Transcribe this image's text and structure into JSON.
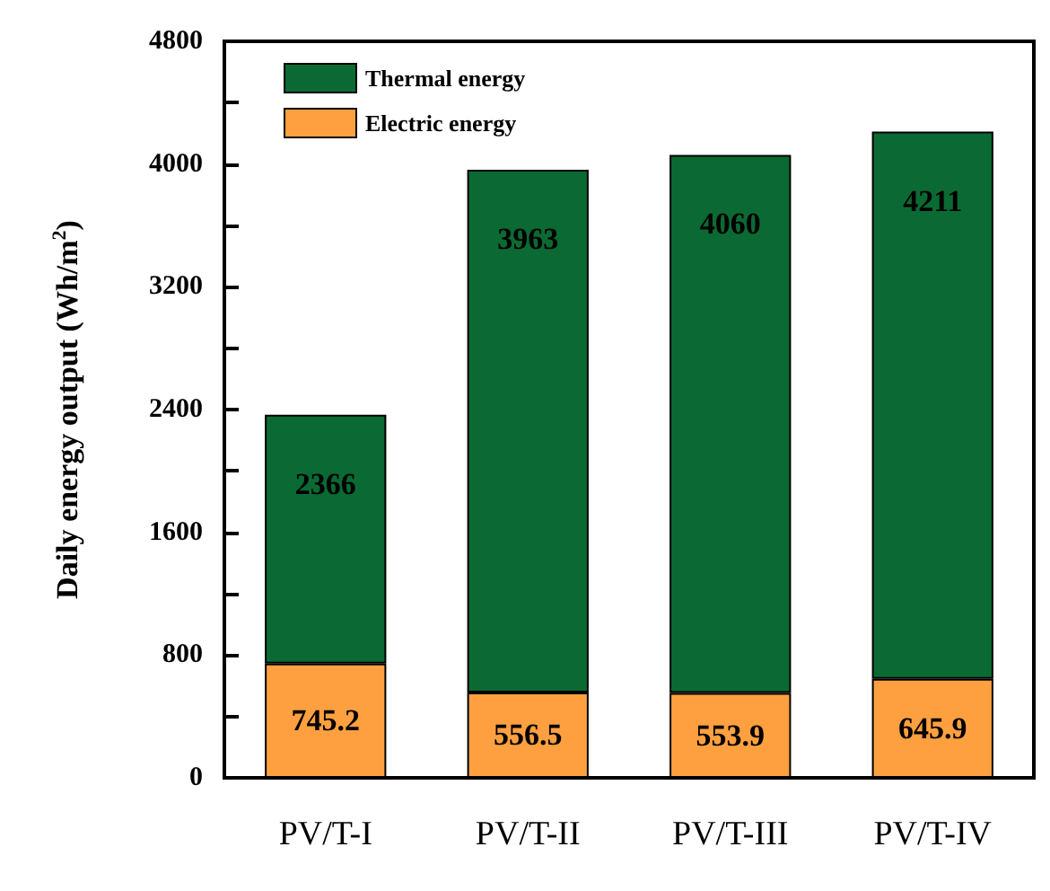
{
  "chart_data": {
    "type": "bar",
    "stacked": true,
    "ylabel": "Daily energy output (Wh/m$^{2}$)",
    "categories": [
      "PV/T-I",
      "PV/T-II",
      "PV/T-III",
      "PV/T-IV"
    ],
    "series": [
      {
        "name": "Electric energy",
        "color": "#ffa040",
        "values": [
          745.2,
          556.5,
          553.9,
          645.9
        ],
        "value_labels": [
          "745.2",
          "556.5",
          "553.9",
          "645.9"
        ]
      },
      {
        "name": "Thermal energy",
        "color": "#0b6a33",
        "values": [
          1620.8,
          3406.5,
          3506.1,
          3565.1
        ]
      }
    ],
    "totals": [
      "2366",
      "3963",
      "4060",
      "4211"
    ],
    "ylim": [
      0,
      4800
    ],
    "yticks": [
      0,
      {
        "value": 400,
        "label": null
      },
      800,
      {
        "value": 1200,
        "label": null
      },
      1600,
      {
        "value": 2000,
        "label": null
      },
      2400,
      {
        "value": 2800,
        "label": null
      },
      3200,
      {
        "value": 3600,
        "label": null
      },
      4000,
      {
        "value": 4400,
        "label": null
      },
      4800
    ],
    "grid": false,
    "legend": "top left"
  }
}
